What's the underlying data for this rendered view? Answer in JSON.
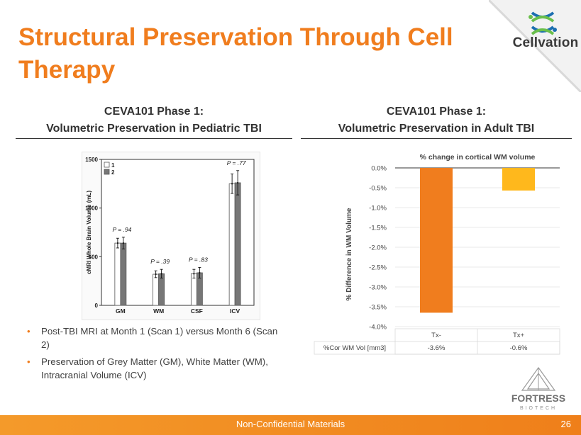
{
  "slide": {
    "title": "Structural Preservation Through Cell Therapy",
    "brand_color": "#f07d1e",
    "logo_text": "Cellvation",
    "footer_text": "Non-Confidential Materials",
    "page_number": "26",
    "fortress_logo_text": "FORTRESS",
    "fortress_logo_sub": "BIOTECH"
  },
  "left_panel": {
    "heading_line1": "CEVA101 Phase 1:",
    "heading_line2": "Volumetric Preservation in Pediatric TBI"
  },
  "right_panel": {
    "heading_line1": "CEVA101 Phase 1:",
    "heading_line2": "Volumetric Preservation in Adult TBI"
  },
  "bullets": [
    "Post-TBI MRI at Month 1 (Scan 1) versus Month 6 (Scan 2)",
    "Preservation of Grey Matter (GM), White Matter (WM), Intracranial Volume (ICV)"
  ],
  "chart_data": [
    {
      "type": "bar",
      "title": "",
      "ylabel": "cMRI Whole Brain Volume (mL)",
      "xlabel": "",
      "categories": [
        "GM",
        "WM",
        "CSF",
        "ICV"
      ],
      "ylim": [
        0,
        1500
      ],
      "yticks": [
        0,
        500,
        1000,
        1500
      ],
      "series": [
        {
          "name": "1",
          "values": [
            640,
            320,
            325,
            1250
          ],
          "errors": [
            50,
            35,
            45,
            100
          ],
          "color": "#ffffff"
        },
        {
          "name": "2",
          "values": [
            640,
            325,
            335,
            1260
          ],
          "errors": [
            60,
            45,
            55,
            125
          ],
          "color": "#777777"
        }
      ],
      "annotations": [
        "P = .94",
        "P = .39",
        "P = .83",
        "P = .77"
      ],
      "legend": "top-left",
      "grid": false
    },
    {
      "type": "bar",
      "title": "% change in cortical WM volume",
      "ylabel": "% Difference in WM Volume",
      "xlabel": "",
      "categories": [
        "Tx-",
        "Tx+"
      ],
      "ylim": [
        -4.0,
        0.0
      ],
      "yticks": [
        "0.0%",
        "-0.5%",
        "-1.0%",
        "-1.5%",
        "-2.0%",
        "-2.5%",
        "-3.0%",
        "-3.5%",
        "-4.0%"
      ],
      "series": [
        {
          "name": "%Cor WM Vol [mm3]",
          "values": [
            -3.65,
            -0.57
          ],
          "labels": [
            "-3.6%",
            "-0.6%"
          ],
          "colors": [
            "#f07d1e",
            "#ffb81c"
          ]
        }
      ],
      "grid": true
    }
  ]
}
